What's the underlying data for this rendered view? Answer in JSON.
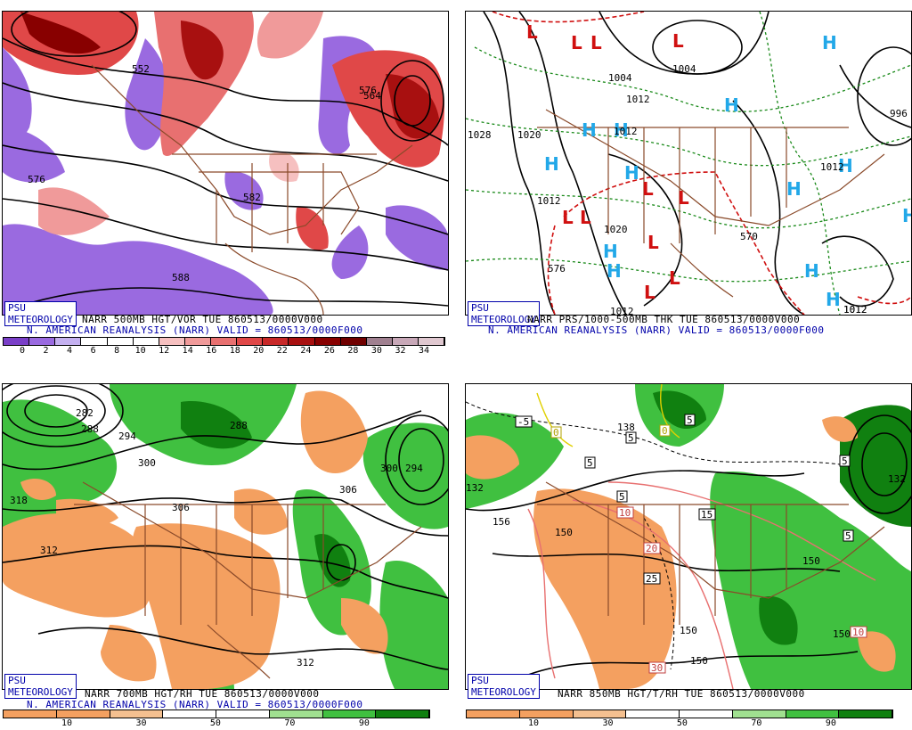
{
  "logo": "PSU METEOROLOGY",
  "valid_line": "N. AMERICAN REANALYSIS (NARR) VALID = 860513/0000F000",
  "panels": {
    "tl": {
      "title": "NARR 500MB HGT/VOR TUE 860513/0000V000",
      "scale": {
        "labels": [
          "0",
          "2",
          "4",
          "6",
          "8",
          "10",
          "12",
          "14",
          "16",
          "18",
          "20",
          "22",
          "24",
          "26",
          "28",
          "30",
          "32",
          "34"
        ],
        "colors": [
          "#7a3fc8",
          "#9a6ae0",
          "#c4b0f0",
          "#ffffff",
          "#ffffff",
          "#ffffff",
          "#f6c0c0",
          "#f09a9a",
          "#e87070",
          "#e04848",
          "#c82828",
          "#a81010",
          "#880000",
          "#700000",
          "#a08090",
          "#c8a8b8",
          "#e0c8d0"
        ]
      },
      "contour_labels": [
        "552",
        "564",
        "576",
        "582",
        "588",
        "576"
      ]
    },
    "tr": {
      "title": "NARR PRS/1000-500MB THK TUE 860513/0000V000",
      "contour_labels": [
        "1004",
        "1012",
        "1020",
        "1028",
        "1004",
        "1012",
        "1020",
        "1012",
        "996",
        "1012",
        "1012",
        "1012",
        "570",
        "576",
        "1012"
      ]
    },
    "bl": {
      "title": "NARR 700MB HGT/RH TUE 860513/0000V000",
      "scale": {
        "labels": [
          "10",
          "30",
          "50",
          "70",
          "90"
        ],
        "colors": [
          "#f4a060",
          "#f4a060",
          "#f4c090",
          "#ffffff",
          "#ffffff",
          "#a0e090",
          "#40c040",
          "#108010"
        ]
      },
      "contour_labels": [
        "282",
        "288",
        "294",
        "288",
        "300",
        "306",
        "318",
        "312",
        "306",
        "300",
        "294",
        "312"
      ]
    },
    "br": {
      "title": "NARR 850MB HGT/T/RH TUE 860513/0000V000",
      "scale": {
        "labels": [
          "10",
          "30",
          "50",
          "70",
          "90"
        ],
        "colors": [
          "#f4a060",
          "#f4a060",
          "#f4c090",
          "#ffffff",
          "#ffffff",
          "#a0e090",
          "#40c040",
          "#108010"
        ]
      },
      "contour_labels": [
        "138",
        "132",
        "156",
        "150",
        "150",
        "150",
        "150",
        "150",
        "132"
      ],
      "boxed_labels": [
        "-5",
        "0",
        "5",
        "0",
        "5",
        "5",
        "5",
        "10",
        "15",
        "20",
        "25",
        "30",
        "10",
        "5",
        "5"
      ]
    }
  }
}
